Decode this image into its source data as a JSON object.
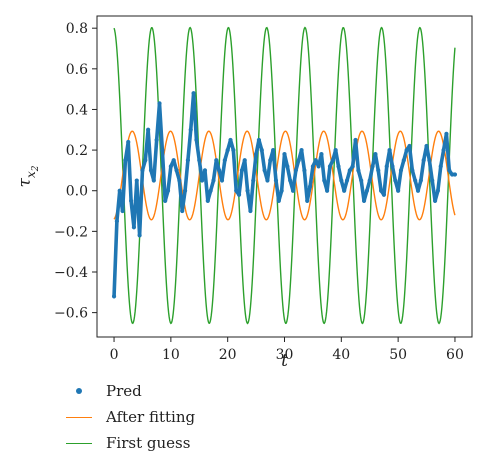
{
  "chart_data": {
    "type": "line",
    "xlabel": "t",
    "ylabel": "τ",
    "ylabel_sub": "x",
    "ylabel_subsub": "2",
    "xlim": [
      -3,
      63
    ],
    "ylim": [
      -0.72,
      0.86
    ],
    "xticks": [
      0,
      10,
      20,
      30,
      40,
      50,
      60
    ],
    "yticks": [
      -0.6,
      -0.4,
      -0.2,
      0.0,
      0.2,
      0.4,
      0.6,
      0.8
    ],
    "ytick_labels": [
      "−0.6",
      "−0.4",
      "−0.2",
      "0.0",
      "0.2",
      "0.4",
      "0.6",
      "0.8"
    ],
    "grid": false,
    "legend_position": "below",
    "series": [
      {
        "name": "First guess",
        "color": "#2ca02c",
        "kind": "sine",
        "offset": 0.075,
        "amplitude": 0.728,
        "period": 6.74,
        "phase_deg": 95,
        "x_range": [
          0,
          60
        ]
      },
      {
        "name": "After fitting",
        "color": "#ff7f0e",
        "kind": "sine",
        "offset": 0.075,
        "amplitude": 0.218,
        "period": 6.74,
        "phase_deg": -81,
        "x_range": [
          0,
          60
        ]
      },
      {
        "name": "Pred",
        "color": "#1f77b4",
        "kind": "points",
        "x": [
          0,
          0.5,
          1,
          1.5,
          2,
          2.5,
          3,
          3.5,
          4,
          4.5,
          5,
          5.5,
          6,
          6.5,
          7,
          7.5,
          8,
          8.5,
          9,
          9.5,
          10,
          10.5,
          11,
          11.5,
          12,
          12.5,
          13,
          13.5,
          14,
          14.5,
          15,
          15.5,
          16,
          16.5,
          17,
          17.5,
          18,
          18.5,
          19,
          19.5,
          20,
          20.5,
          21,
          21.5,
          22,
          22.5,
          23,
          23.5,
          24,
          24.5,
          25,
          25.5,
          26,
          26.5,
          27,
          27.5,
          28,
          28.5,
          29,
          29.5,
          30,
          30.5,
          31,
          31.5,
          32,
          32.5,
          33,
          33.5,
          34,
          34.5,
          35,
          35.5,
          36,
          36.5,
          37,
          37.5,
          38,
          38.5,
          39,
          39.5,
          40,
          40.5,
          41,
          41.5,
          42,
          42.5,
          43,
          43.5,
          44,
          44.5,
          45,
          45.5,
          46,
          46.5,
          47,
          47.5,
          48,
          48.5,
          49,
          49.5,
          50,
          50.5,
          51,
          51.5,
          52,
          52.5,
          53,
          53.5,
          54,
          54.5,
          55,
          55.5,
          56,
          56.5,
          57,
          57.5,
          58,
          58.5,
          59,
          59.5,
          60
        ],
        "y": [
          -0.52,
          -0.15,
          0.0,
          -0.1,
          0.15,
          0.24,
          -0.05,
          -0.18,
          0.05,
          -0.22,
          0.1,
          0.15,
          0.3,
          0.1,
          0.05,
          0.25,
          0.43,
          0.2,
          -0.05,
          0.0,
          0.12,
          0.15,
          0.1,
          0.05,
          -0.1,
          0.0,
          0.15,
          0.3,
          0.48,
          0.25,
          0.15,
          0.05,
          0.1,
          -0.05,
          0.0,
          0.05,
          0.15,
          0.1,
          0.05,
          0.15,
          0.2,
          0.25,
          0.2,
          0.0,
          -0.02,
          0.1,
          0.15,
          0.0,
          -0.1,
          0.05,
          0.18,
          0.25,
          0.2,
          0.1,
          0.05,
          0.15,
          0.2,
          0.05,
          -0.05,
          0.0,
          0.18,
          0.12,
          0.05,
          0.0,
          0.1,
          0.15,
          0.2,
          0.1,
          -0.05,
          0.02,
          0.12,
          0.15,
          0.12,
          0.18,
          0.05,
          0.0,
          0.12,
          0.15,
          0.2,
          0.12,
          0.05,
          0.0,
          0.05,
          0.1,
          0.12,
          0.25,
          0.1,
          0.05,
          -0.05,
          0.0,
          0.05,
          0.12,
          0.18,
          0.1,
          0.0,
          -0.02,
          0.12,
          0.2,
          0.12,
          0.05,
          0.0,
          0.1,
          0.15,
          0.2,
          0.22,
          0.1,
          0.05,
          0.0,
          0.05,
          0.15,
          0.22,
          0.15,
          0.05,
          -0.05,
          0.0,
          0.12,
          0.2,
          0.28,
          0.1,
          0.08,
          0.08
        ]
      }
    ]
  },
  "legend": {
    "items": [
      {
        "label": "Pred",
        "color": "#1f77b4",
        "style": "dot"
      },
      {
        "label": "After fitting",
        "color": "#ff7f0e",
        "style": "line"
      },
      {
        "label": "First guess",
        "color": "#2ca02c",
        "style": "line"
      }
    ]
  }
}
